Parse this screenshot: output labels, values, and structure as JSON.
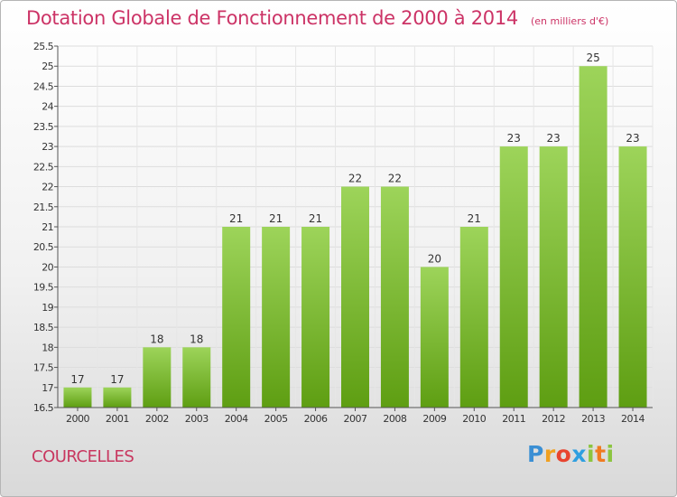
{
  "page": {
    "title": "Dotation Globale de Fonctionnement de 2000 à 2014",
    "unit": "(en milliers d'€)",
    "place": "COURCELLES",
    "brand": "Proxiti"
  },
  "chart_data": {
    "type": "bar",
    "title": "Dotation Globale de Fonctionnement de 2000 à 2014",
    "subtitle": "(en milliers d'€)",
    "xlabel": "",
    "ylabel": "",
    "categories": [
      "2000",
      "2001",
      "2002",
      "2003",
      "2004",
      "2005",
      "2006",
      "2007",
      "2008",
      "2009",
      "2010",
      "2011",
      "2012",
      "2013",
      "2014"
    ],
    "values": [
      17,
      17,
      18,
      18,
      21,
      21,
      21,
      22,
      22,
      20,
      21,
      23,
      23,
      25,
      23
    ],
    "ylim": [
      16.5,
      25.5
    ],
    "yticks": [
      "16.5",
      "17",
      "17.5",
      "18",
      "18.5",
      "19",
      "19.5",
      "20",
      "20.5",
      "21",
      "21.5",
      "22",
      "22.5",
      "23",
      "23.5",
      "24",
      "24.5",
      "25",
      "25.5"
    ],
    "grid": true,
    "legend": "none",
    "colors": {
      "bar_top": "#9dd45a",
      "bar_bottom": "#5e9e12",
      "grid": "#dddddd",
      "axis": "#555555",
      "title": "#cc3366"
    }
  }
}
